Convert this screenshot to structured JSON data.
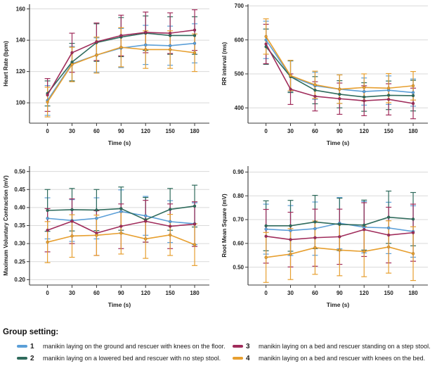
{
  "legend": {
    "title": "Group setting:",
    "items": [
      {
        "number": "1",
        "color": "#5B9FD8",
        "label": "manikin laying on the ground and rescuer with knees on the floor."
      },
      {
        "number": "2",
        "color": "#2F6B5C",
        "label": "manikin laying on a lowered bed and rescuer with no step stool."
      },
      {
        "number": "3",
        "color": "#A02C5B",
        "label": "manikin laying on a bed and rescuer standing on a step stool."
      },
      {
        "number": "4",
        "color": "#E79F2F",
        "label": "manikin laying on a bed and rescuer with knees on the bed."
      }
    ]
  },
  "style": {
    "grid_color": "#d9d9d9",
    "axis_color": "#3a3a3a",
    "tick_label_color": "#1f1f1f"
  },
  "chart_data": [
    {
      "type": "line",
      "title": "",
      "xlabel": "Time (s)",
      "ylabel": "Heart Rate (bpm)",
      "x": [
        0,
        30,
        60,
        90,
        120,
        150,
        180
      ],
      "xtick_labels": [
        "0",
        "30",
        "60",
        "90",
        "120",
        "150",
        "180"
      ],
      "xlim": [
        -22,
        198
      ],
      "ylim": [
        87,
        163
      ],
      "yticks": [
        100,
        120,
        140,
        160
      ],
      "ytick_labels": [
        "100",
        "120",
        "140",
        "160"
      ],
      "grid": "horizontal",
      "legend_position": "none",
      "series": [
        {
          "name": "1",
          "color": "#5B9FD8",
          "values": [
            101.5,
            125,
            130.5,
            135,
            137,
            136.5,
            138
          ],
          "errors": [
            9.5,
            11,
            11,
            12.5,
            12.5,
            12.5,
            12.5
          ]
        },
        {
          "name": "2",
          "color": "#2F6B5C",
          "values": [
            106,
            126,
            138.5,
            142,
            144.5,
            143,
            143
          ],
          "errors": [
            8,
            12,
            12,
            12.5,
            11,
            12,
            12
          ]
        },
        {
          "name": "3",
          "color": "#A02C5B",
          "values": [
            105,
            132,
            139,
            143,
            145,
            144.5,
            146.5
          ],
          "errors": [
            10.5,
            12.5,
            12,
            13,
            13,
            13,
            13
          ]
        },
        {
          "name": "4",
          "color": "#E79F2F",
          "values": [
            100.5,
            124.5,
            130.5,
            135.5,
            134,
            134,
            132
          ],
          "errors": [
            9.5,
            11,
            11.5,
            12.5,
            12,
            12,
            12
          ]
        }
      ]
    },
    {
      "type": "line",
      "title": "",
      "xlabel": "Time (s)",
      "ylabel": "RR interval (ms)",
      "x": [
        0,
        30,
        60,
        90,
        120,
        150,
        180
      ],
      "xtick_labels": [
        "0",
        "30",
        "60",
        "90",
        "120",
        "150",
        "180"
      ],
      "xlim": [
        -22,
        198
      ],
      "ylim": [
        355,
        705
      ],
      "yticks": [
        400,
        500,
        600,
        700
      ],
      "ytick_labels": [
        "400",
        "500",
        "600",
        "700"
      ],
      "grid": "horizontal",
      "legend_position": "none",
      "series": [
        {
          "name": "1",
          "color": "#5B9FD8",
          "values": [
            600,
            493,
            465,
            455,
            448,
            452,
            445
          ],
          "errors": [
            55,
            45,
            40,
            42,
            40,
            42,
            40
          ]
        },
        {
          "name": "2",
          "color": "#2F6B5C",
          "values": [
            580,
            492,
            452,
            440,
            432,
            437,
            436
          ],
          "errors": [
            52,
            47,
            40,
            40,
            42,
            42,
            45
          ]
        },
        {
          "name": "3",
          "color": "#A02C5B",
          "values": [
            588,
            455,
            434,
            427,
            421,
            425,
            413
          ],
          "errors": [
            58,
            45,
            43,
            46,
            44,
            46,
            45
          ]
        },
        {
          "name": "4",
          "color": "#E79F2F",
          "values": [
            610,
            495,
            468,
            455,
            460,
            458,
            465
          ],
          "errors": [
            52,
            45,
            40,
            42,
            40,
            43,
            42
          ]
        }
      ]
    },
    {
      "type": "line",
      "title": "",
      "xlabel": "Time (s)",
      "ylabel": "Maximum Voluntary Contraction (mV)",
      "x": [
        0,
        30,
        60,
        90,
        120,
        150,
        180
      ],
      "xtick_labels": [
        "0",
        "30",
        "60",
        "90",
        "120",
        "150",
        "180"
      ],
      "xlim": [
        -22,
        198
      ],
      "ylim": [
        0.185,
        0.515
      ],
      "yticks": [
        0.2,
        0.25,
        0.3,
        0.35,
        0.4,
        0.45,
        0.5
      ],
      "ytick_labels": [
        "0.20",
        "0.25",
        "0.30",
        "0.35",
        "0.40",
        "0.45",
        "0.50"
      ],
      "grid": "horizontal",
      "legend_position": "none",
      "series": [
        {
          "name": "1",
          "color": "#5B9FD8",
          "values": [
            0.37,
            0.364,
            0.37,
            0.389,
            0.377,
            0.361,
            0.355
          ],
          "errors": [
            0.057,
            0.058,
            0.057,
            0.06,
            0.054,
            0.058,
            0.058
          ]
        },
        {
          "name": "2",
          "color": "#2F6B5C",
          "values": [
            0.392,
            0.394,
            0.393,
            0.397,
            0.366,
            0.395,
            0.404
          ],
          "errors": [
            0.058,
            0.059,
            0.057,
            0.06,
            0.062,
            0.058,
            0.058
          ]
        },
        {
          "name": "3",
          "color": "#A02C5B",
          "values": [
            0.337,
            0.362,
            0.329,
            0.348,
            0.362,
            0.348,
            0.354
          ],
          "errors": [
            0.06,
            0.062,
            0.062,
            0.062,
            0.058,
            0.062,
            0.062
          ]
        },
        {
          "name": "4",
          "color": "#E79F2F",
          "values": [
            0.304,
            0.321,
            0.323,
            0.329,
            0.313,
            0.324,
            0.297
          ],
          "errors": [
            0.057,
            0.059,
            0.056,
            0.058,
            0.054,
            0.057,
            0.058
          ]
        }
      ]
    },
    {
      "type": "line",
      "title": "",
      "xlabel": "Time (s)",
      "ylabel": "Root Mean Square (mV)",
      "x": [
        0,
        30,
        60,
        90,
        120,
        150,
        180
      ],
      "xtick_labels": [
        "0",
        "30",
        "60",
        "90",
        "120",
        "150",
        "180"
      ],
      "xlim": [
        -22,
        198
      ],
      "ylim": [
        0.425,
        0.925
      ],
      "yticks": [
        0.5,
        0.6,
        0.7,
        0.8,
        0.9
      ],
      "ytick_labels": [
        "0.50",
        "0.60",
        "0.70",
        "0.80",
        "0.90"
      ],
      "grid": "horizontal",
      "legend_position": "none",
      "series": [
        {
          "name": "1",
          "color": "#5B9FD8",
          "values": [
            0.66,
            0.654,
            0.662,
            0.685,
            0.668,
            0.665,
            0.65
          ],
          "errors": [
            0.105,
            0.105,
            0.112,
            0.108,
            0.108,
            0.108,
            0.108
          ]
        },
        {
          "name": "2",
          "color": "#2F6B5C",
          "values": [
            0.674,
            0.674,
            0.69,
            0.68,
            0.677,
            0.71,
            0.702
          ],
          "errors": [
            0.105,
            0.107,
            0.112,
            0.11,
            0.105,
            0.11,
            0.112
          ]
        },
        {
          "name": "3",
          "color": "#A02C5B",
          "values": [
            0.63,
            0.616,
            0.624,
            0.628,
            0.658,
            0.635,
            0.645
          ],
          "errors": [
            0.113,
            0.115,
            0.12,
            0.116,
            0.113,
            0.117,
            0.12
          ]
        },
        {
          "name": "4",
          "color": "#E79F2F",
          "values": [
            0.541,
            0.555,
            0.582,
            0.572,
            0.566,
            0.585,
            0.557
          ],
          "errors": [
            0.105,
            0.107,
            0.112,
            0.108,
            0.106,
            0.11,
            0.113
          ]
        }
      ]
    }
  ]
}
